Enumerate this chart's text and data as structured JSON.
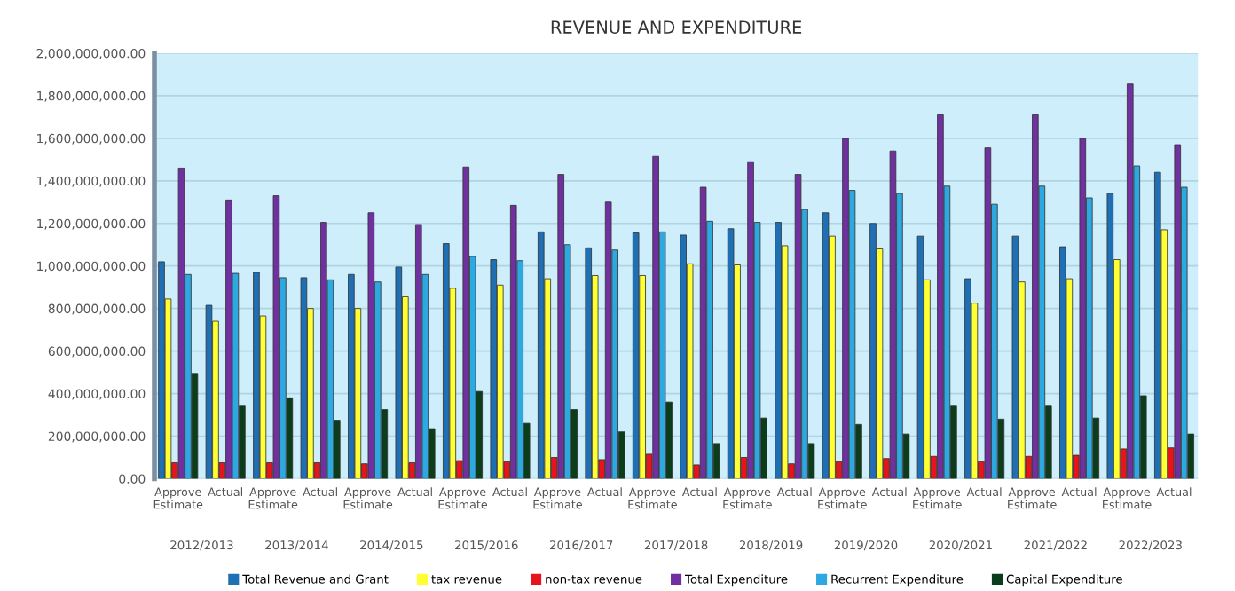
{
  "chart_data": {
    "type": "bar",
    "title": "REVENUE AND EXPENDITURE",
    "categories": [
      "Approve\nEstimate",
      "Actual",
      "Approve\nEstimate",
      "Actual",
      "Approve\nEstimate",
      "Actual",
      "Approve\nEstimate",
      "Actual",
      "Approve\nEstimate",
      "Actual",
      "Approve\nEstimate",
      "Actual",
      "Approve\nEstimate",
      "Actual",
      "Approve\nEstimate",
      "Actual",
      "Approve\nEstimate",
      "Actual",
      "Approve\nEstimate",
      "Actual",
      "Approve\nEstimate",
      "Actual"
    ],
    "annotations": [
      "2012/2013",
      "2013/2014",
      "2014/2015",
      "2015/2016",
      "2016/2017",
      "2017/2018",
      "2018/2019",
      "2019/2020",
      "2020/2021",
      "2021/2022",
      "2022/2023"
    ],
    "series": [
      {
        "name": "Total Revenue and Grant",
        "color": "#1f6fb5",
        "values": [
          1020000000,
          815000000,
          970000000,
          945000000,
          960000000,
          995000000,
          1105000000,
          1030000000,
          1160000000,
          1085000000,
          1155000000,
          1145000000,
          1175000000,
          1205000000,
          1250000000,
          1200000000,
          1140000000,
          940000000,
          1140000000,
          1090000000,
          1340000000,
          1440000000
        ]
      },
      {
        "name": "tax revenue",
        "color": "#ffff33",
        "values": [
          845000000,
          740000000,
          765000000,
          800000000,
          800000000,
          855000000,
          895000000,
          910000000,
          940000000,
          955000000,
          955000000,
          1010000000,
          1005000000,
          1095000000,
          1140000000,
          1080000000,
          935000000,
          825000000,
          925000000,
          940000000,
          1030000000,
          1170000000
        ]
      },
      {
        "name": "non-tax revenue",
        "color": "#e8141c",
        "values": [
          75000000,
          75000000,
          75000000,
          75000000,
          70000000,
          75000000,
          85000000,
          80000000,
          100000000,
          90000000,
          115000000,
          65000000,
          100000000,
          70000000,
          80000000,
          95000000,
          105000000,
          80000000,
          105000000,
          110000000,
          140000000,
          145000000
        ]
      },
      {
        "name": "Total Expenditure",
        "color": "#7030a0",
        "values": [
          1460000000,
          1310000000,
          1330000000,
          1205000000,
          1250000000,
          1195000000,
          1465000000,
          1285000000,
          1430000000,
          1300000000,
          1515000000,
          1370000000,
          1490000000,
          1430000000,
          1600000000,
          1540000000,
          1710000000,
          1555000000,
          1710000000,
          1600000000,
          1855000000,
          1570000000
        ]
      },
      {
        "name": "Recurrent Expenditure",
        "color": "#2ea8e0",
        "values": [
          960000000,
          965000000,
          945000000,
          935000000,
          925000000,
          960000000,
          1045000000,
          1025000000,
          1100000000,
          1075000000,
          1160000000,
          1210000000,
          1205000000,
          1265000000,
          1355000000,
          1340000000,
          1375000000,
          1290000000,
          1375000000,
          1320000000,
          1470000000,
          1370000000
        ]
      },
      {
        "name": "Capital Expenditure",
        "color": "#0b3d1a",
        "values": [
          495000000,
          345000000,
          380000000,
          275000000,
          325000000,
          235000000,
          410000000,
          260000000,
          325000000,
          220000000,
          360000000,
          165000000,
          285000000,
          165000000,
          255000000,
          210000000,
          345000000,
          280000000,
          345000000,
          285000000,
          390000000,
          210000000
        ]
      }
    ],
    "ylim": [
      0,
      2000000000
    ],
    "yticks": [
      {
        "value": 0,
        "label": "0.00"
      },
      {
        "value": 200000000,
        "label": "200,000,000.00"
      },
      {
        "value": 400000000,
        "label": "400,000,000.00"
      },
      {
        "value": 600000000,
        "label": "600,000,000.00"
      },
      {
        "value": 800000000,
        "label": "800,000,000.00"
      },
      {
        "value": 1000000000,
        "label": "1,000,000,000.00"
      },
      {
        "value": 1200000000,
        "label": "1,200,000,000.00"
      },
      {
        "value": 1400000000,
        "label": "1,400,000,000.00"
      },
      {
        "value": 1600000000,
        "label": "1,600,000,000.00"
      },
      {
        "value": 1800000000,
        "label": "1,800,000,000.00"
      },
      {
        "value": 2000000000,
        "label": "2,000,000,000.00"
      }
    ],
    "grid": "y",
    "legend": "bottom"
  }
}
